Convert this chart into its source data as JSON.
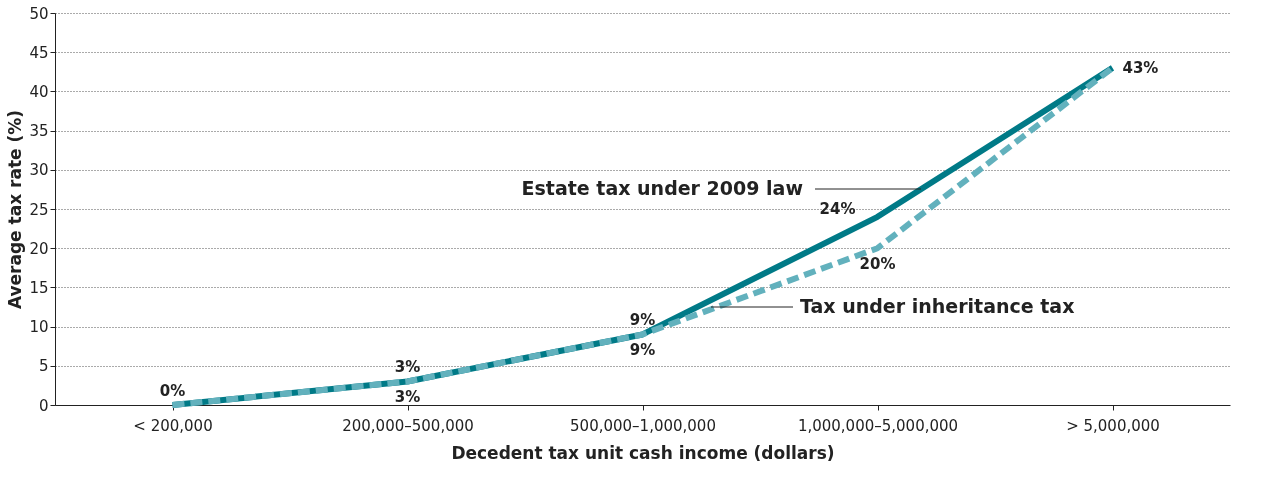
{
  "chart_data": {
    "type": "line",
    "xlabel": "Decedent tax unit cash income (dollars)",
    "ylabel": "Average tax rate (%)",
    "categories": [
      "< 200,000",
      "200,000–500,000",
      "500,000–1,000,000",
      "1,000,000–5,000,000",
      "> 5,000,000"
    ],
    "ylim": [
      0,
      50
    ],
    "yticks": [
      0,
      5,
      10,
      15,
      20,
      25,
      30,
      35,
      40,
      45,
      50
    ],
    "grid": "y",
    "legend": false,
    "series": [
      {
        "name": "Estate tax under 2009 law",
        "color": "#007a87",
        "line_style": "solid",
        "values": [
          0,
          3,
          9,
          24,
          43
        ],
        "value_labels": [
          "0%",
          "3%",
          "9%",
          "24%",
          "43%"
        ]
      },
      {
        "name": "Tax under inheritance tax",
        "color": "#62b1bd",
        "line_style": "dashed",
        "values": [
          0,
          3,
          9,
          20,
          43
        ],
        "value_labels": [
          null,
          "3%",
          "9%",
          "20%",
          null
        ]
      }
    ]
  }
}
